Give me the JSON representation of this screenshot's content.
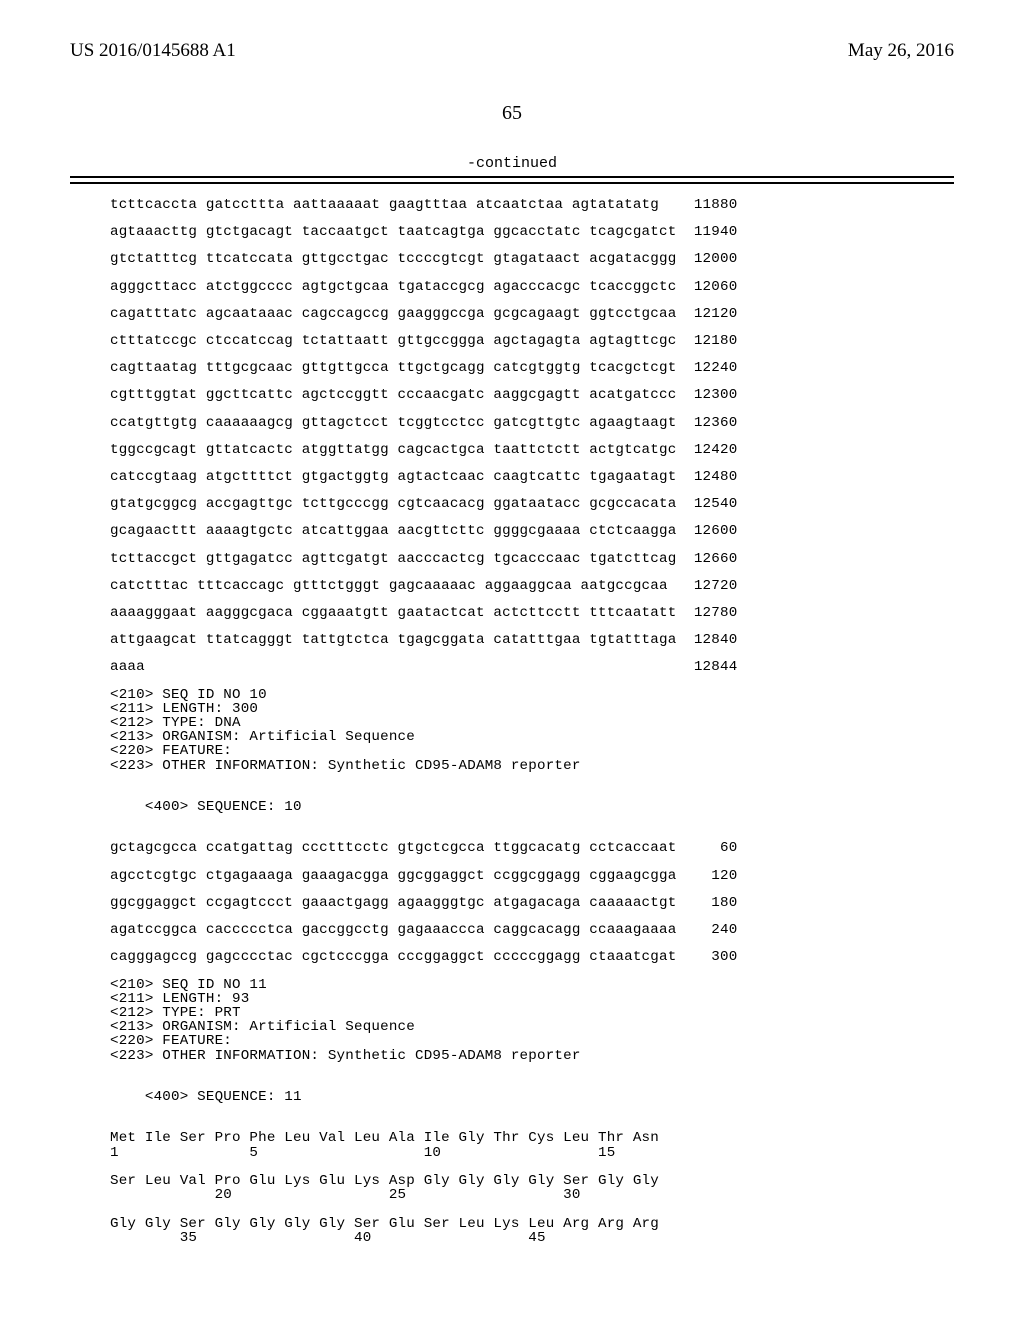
{
  "header": {
    "publication_number": "US 2016/0145688 A1",
    "publication_date": "May 26, 2016"
  },
  "page_number": "65",
  "continued_label": "-continued",
  "sequence_lines": [
    {
      "text": "tcttcaccta gatccttta aattaaaaat gaagtttaa atcaatctaa agtatatatg",
      "pos": "11880"
    },
    {
      "text": "agtaaacttg gtctgacagt taccaatgct taatcagtga ggcacctatc tcagcgatct",
      "pos": "11940"
    },
    {
      "text": "gtctatttcg ttcatccata gttgcctgac tccccgtcgt gtagataact acgatacggg",
      "pos": "12000"
    },
    {
      "text": "agggcttacc atctggcccc agtgctgcaa tgataccgcg agacccacgc tcaccggctc",
      "pos": "12060"
    },
    {
      "text": "cagatttatc agcaataaac cagccagccg gaagggccga gcgcagaagt ggtcctgcaa",
      "pos": "12120"
    },
    {
      "text": "ctttatccgc ctccatccag tctattaatt gttgccggga agctagagta agtagttcgc",
      "pos": "12180"
    },
    {
      "text": "cagttaatag tttgcgcaac gttgttgcca ttgctgcagg catcgtggtg tcacgctcgt",
      "pos": "12240"
    },
    {
      "text": "cgtttggtat ggcttcattc agctccggtt cccaacgatc aaggcgagtt acatgatccc",
      "pos": "12300"
    },
    {
      "text": "ccatgttgtg caaaaaagcg gttagctcct tcggtcctcc gatcgttgtc agaagtaagt",
      "pos": "12360"
    },
    {
      "text": "tggccgcagt gttatcactc atggttatgg cagcactgca taattctctt actgtcatgc",
      "pos": "12420"
    },
    {
      "text": "catccgtaag atgcttttct gtgactggtg agtactcaac caagtcattc tgagaatagt",
      "pos": "12480"
    },
    {
      "text": "gtatgcggcg accgagttgc tcttgcccgg cgtcaacacg ggataatacc gcgccacata",
      "pos": "12540"
    },
    {
      "text": "gcagaacttt aaaagtgctc atcattggaa aacgttcttc ggggcgaaaa ctctcaagga",
      "pos": "12600"
    },
    {
      "text": "tcttaccgct gttgagatcc agttcgatgt aacccactcg tgcacccaac tgatcttcag",
      "pos": "12660"
    },
    {
      "text": "catctttac tttcaccagc gtttctgggt gagcaaaaac aggaaggcaa aatgccgcaa",
      "pos": "12720"
    },
    {
      "text": "aaaagggaat aagggcgaca cggaaatgtt gaatactcat actcttcctt tttcaatatt",
      "pos": "12780"
    },
    {
      "text": "attgaagcat ttatcagggt tattgtctca tgagcggata catatttgaa tgtatttaga",
      "pos": "12840"
    },
    {
      "text": "aaaa",
      "pos": "12844"
    }
  ],
  "meta_block_1": [
    "<210> SEQ ID NO 10",
    "<211> LENGTH: 300",
    "<212> TYPE: DNA",
    "<213> ORGANISM: Artificial Sequence",
    "<220> FEATURE:",
    "<223> OTHER INFORMATION: Synthetic CD95-ADAM8 reporter"
  ],
  "sequence_header_1": "<400> SEQUENCE: 10",
  "sequence_lines_2": [
    {
      "text": "gctagcgcca ccatgattag ccctttcctc gtgctcgcca ttggcacatg cctcaccaat",
      "pos": " 60"
    },
    {
      "text": "agcctcgtgc ctgagaaaga gaaagacgga ggcggaggct ccggcggagg cggaagcgga",
      "pos": "120"
    },
    {
      "text": "ggcggaggct ccgagtccct gaaactgagg agaagggtgc atgagacaga caaaaactgt",
      "pos": "180"
    },
    {
      "text": "agatccggca caccccctca gaccggcctg gagaaaccca caggcacagg ccaaagaaaa",
      "pos": "240"
    },
    {
      "text": "cagggagccg gagcccctac cgctcccgga cccggaggct cccccggagg ctaaatcgat",
      "pos": "300"
    }
  ],
  "meta_block_2": [
    "<210> SEQ ID NO 11",
    "<211> LENGTH: 93",
    "<212> TYPE: PRT",
    "<213> ORGANISM: Artificial Sequence",
    "<220> FEATURE:",
    "<223> OTHER INFORMATION: Synthetic CD95-ADAM8 reporter"
  ],
  "sequence_header_2": "<400> SEQUENCE: 11",
  "protein_lines": [
    "Met Ile Ser Pro Phe Leu Val Leu Ala Ile Gly Thr Cys Leu Thr Asn",
    "1               5                   10                  15",
    "",
    "Ser Leu Val Pro Glu Lys Glu Lys Asp Gly Gly Gly Gly Ser Gly Gly",
    "            20                  25                  30",
    "",
    "Gly Gly Ser Gly Gly Gly Gly Ser Glu Ser Leu Lys Leu Arg Arg Arg",
    "        35                  40                  45"
  ],
  "style": {
    "background_color": "#ffffff",
    "text_color": "#000000",
    "mono_font": "Courier New",
    "serif_font": "Times New Roman",
    "seq_fontsize": 14.2,
    "header_fontsize": 19,
    "page_num_fontsize": 20
  }
}
